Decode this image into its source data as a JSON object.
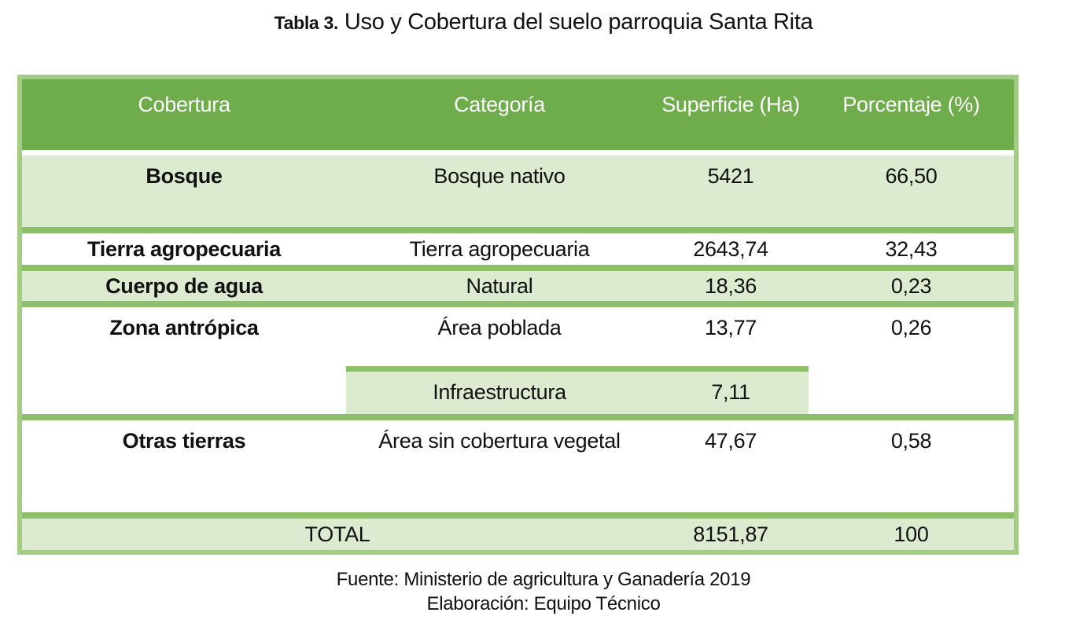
{
  "title": {
    "prefix": "Tabla 3.",
    "main": " Uso y Cobertura del suelo parroquia Santa Rita"
  },
  "table": {
    "headers": {
      "cobertura": "Cobertura",
      "categoria": "Categoría",
      "superficie": "Superficie (Ha)",
      "porcentaje": "Porcentaje (%)"
    },
    "rows": [
      {
        "cobertura": "Bosque",
        "categoria": "Bosque nativo",
        "superficie": "5421",
        "porcentaje": "66,50"
      },
      {
        "cobertura": "Tierra agropecuaria",
        "categoria": "Tierra agropecuaria",
        "superficie": "2643,74",
        "porcentaje": "32,43"
      },
      {
        "cobertura": "Cuerpo de agua",
        "categoria": "Natural",
        "superficie": "18,36",
        "porcentaje": "0,23"
      },
      {
        "cobertura": "Zona antrópica",
        "categoria": "Área poblada",
        "superficie": "13,77",
        "porcentaje": "0,26"
      },
      {
        "cobertura": "",
        "categoria": "Infraestructura",
        "superficie": "7,11",
        "porcentaje": ""
      },
      {
        "cobertura": "Otras tierras",
        "categoria": "Área sin cobertura vegetal",
        "superficie": "47,67",
        "porcentaje": "0,58"
      }
    ],
    "total": {
      "label": "TOTAL",
      "superficie": "8151,87",
      "porcentaje": "100"
    }
  },
  "footer": {
    "source": "Fuente: Ministerio de agricultura y Ganadería 2019",
    "elaboration": "Elaboración: Equipo Técnico"
  },
  "colors": {
    "header_bg": "#6fac4b",
    "header_text": "#ffffff",
    "row_light_green": "#dcebd0",
    "border_outer": "#a2cb84",
    "border_inner": "#8cbf6a",
    "text": "#111111"
  }
}
